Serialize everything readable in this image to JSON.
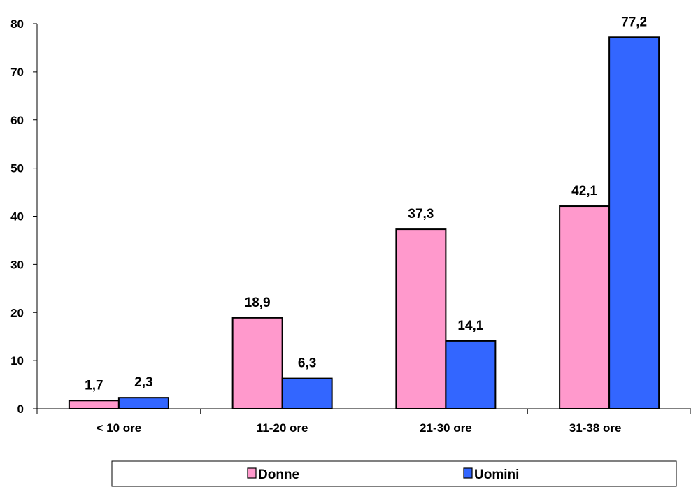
{
  "chart_data": {
    "type": "bar",
    "categories": [
      "< 10 ore",
      "11-20 ore",
      "21-30 ore",
      "31-38 ore"
    ],
    "series": [
      {
        "name": "Donne",
        "values": [
          1.7,
          18.9,
          37.3,
          42.1
        ],
        "color": "#FF99CC"
      },
      {
        "name": "Uomini",
        "values": [
          2.3,
          6.3,
          14.1,
          77.2
        ],
        "color": "#3366FF"
      }
    ],
    "data_labels": [
      [
        "1,7",
        "18,9",
        "37,3",
        "42,1"
      ],
      [
        "2,3",
        "6,3",
        "14,1",
        "77,2"
      ]
    ],
    "title": "",
    "xlabel": "",
    "ylabel": "",
    "ylim": [
      0,
      80
    ],
    "yticks": [
      0,
      10,
      20,
      30,
      40,
      50,
      60,
      70,
      80
    ],
    "grid": false,
    "legend": "bottom"
  }
}
